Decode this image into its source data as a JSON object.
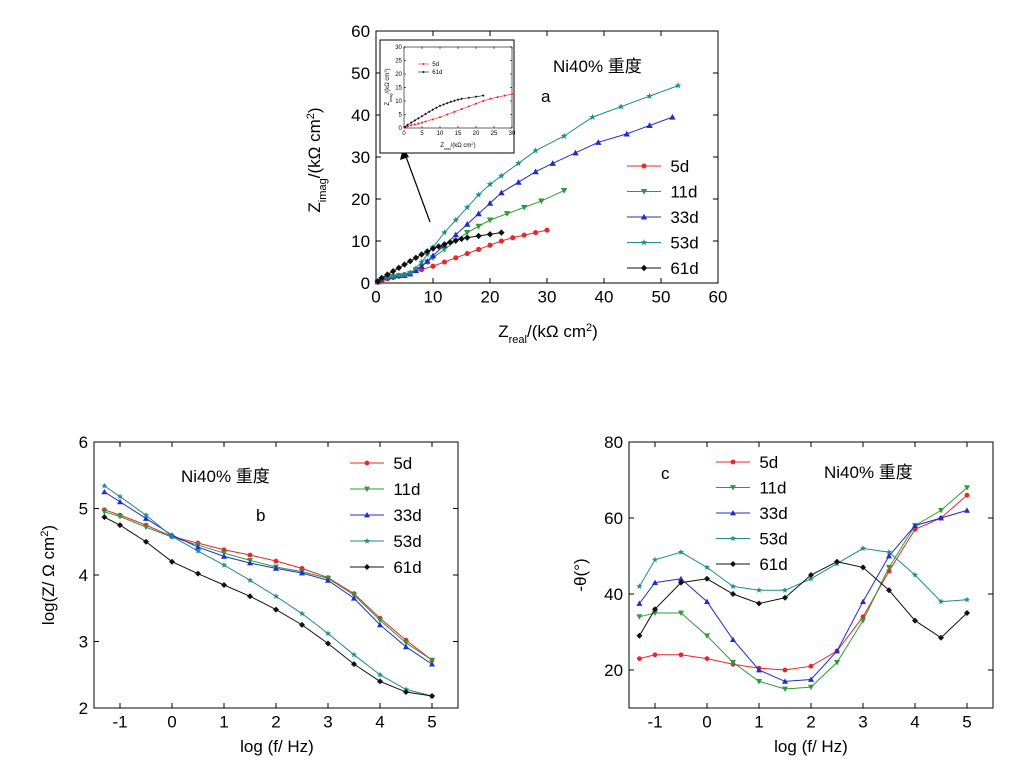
{
  "chart_data": [
    {
      "id": "a",
      "type": "scatter",
      "panel_label": "a",
      "annotation": "Ni40% 重度",
      "xlabel": "Z_real/(kΩ cm^2)",
      "ylabel": "Z_imag/(kΩ cm^2)",
      "xlim": [
        0,
        60
      ],
      "ylim": [
        0,
        60
      ],
      "xticks": [
        0,
        10,
        20,
        30,
        40,
        50,
        60
      ],
      "yticks": [
        0,
        10,
        20,
        30,
        40,
        50,
        60
      ],
      "legend_position": "right",
      "series": [
        {
          "name": "5d",
          "color": "#e8262c",
          "marker": "circle",
          "x": [
            0.3,
            1,
            2,
            3,
            4,
            5,
            6,
            8,
            10,
            12,
            14,
            16,
            18,
            20,
            22,
            24,
            26,
            28,
            30
          ],
          "y": [
            0.2,
            0.6,
            1.0,
            1.3,
            1.6,
            2.0,
            2.4,
            3.2,
            4.0,
            5.0,
            6.0,
            7.0,
            8.0,
            9.0,
            10.0,
            10.8,
            11.4,
            12.0,
            12.6
          ]
        },
        {
          "name": "11d",
          "color": "#2e9a3a",
          "marker": "triangle-down",
          "x": [
            0.3,
            1,
            2,
            3,
            4,
            5,
            6,
            7,
            8,
            9,
            10,
            12,
            14,
            16,
            18,
            20,
            23,
            26,
            29,
            33
          ],
          "y": [
            0.3,
            0.8,
            1.2,
            1.5,
            1.7,
            1.8,
            2.2,
            3.0,
            4.0,
            5.0,
            6.0,
            8.0,
            10.0,
            12.0,
            13.5,
            15.0,
            16.5,
            18.0,
            19.5,
            22.0
          ]
        },
        {
          "name": "33d",
          "color": "#1f2dcc",
          "marker": "triangle-up",
          "x": [
            0.3,
            1,
            2,
            3,
            4,
            5,
            6,
            7,
            8,
            9,
            10,
            12,
            14,
            16,
            18,
            20,
            22,
            25,
            28,
            31,
            35,
            39,
            44,
            48,
            52
          ],
          "y": [
            0.3,
            0.9,
            1.3,
            1.6,
            1.8,
            1.8,
            2.2,
            3.0,
            4.0,
            5.2,
            6.5,
            9.0,
            11.5,
            14.0,
            16.5,
            19.0,
            21.5,
            24.0,
            26.5,
            28.5,
            31.0,
            33.5,
            35.5,
            37.5,
            39.5
          ]
        },
        {
          "name": "53d",
          "color": "#1e8c8c",
          "marker": "star",
          "x": [
            0.3,
            1,
            2,
            3,
            4,
            5,
            6,
            7,
            8,
            9,
            10,
            12,
            14,
            16,
            18,
            20,
            22,
            25,
            28,
            33,
            38,
            43,
            48,
            53
          ],
          "y": [
            0.3,
            0.9,
            1.3,
            1.6,
            1.8,
            1.9,
            2.4,
            3.5,
            5.0,
            6.8,
            8.5,
            12.0,
            15.0,
            18.0,
            21.0,
            23.5,
            25.5,
            28.5,
            31.5,
            35.0,
            39.5,
            42.0,
            44.5,
            47.0
          ]
        },
        {
          "name": "61d",
          "color": "#111111",
          "marker": "diamond",
          "x": [
            0.3,
            1,
            2,
            3,
            4,
            5,
            6,
            7,
            8,
            9,
            10,
            11,
            12,
            13,
            14,
            15,
            16,
            18,
            20,
            22
          ],
          "y": [
            0.4,
            1.2,
            2.0,
            2.8,
            3.6,
            4.4,
            5.2,
            6.0,
            6.8,
            7.5,
            8.2,
            8.7,
            9.2,
            9.7,
            10.1,
            10.5,
            10.8,
            11.2,
            11.6,
            12.0
          ]
        }
      ]
    },
    {
      "id": "a-inset",
      "type": "scatter",
      "xlabel": "Z_real/(kΩ cm^2)",
      "ylabel": "Z_imag/(kΩ cm^2)",
      "xlim": [
        0,
        30
      ],
      "ylim": [
        0,
        30
      ],
      "xticks": [
        0,
        5,
        10,
        15,
        20,
        25,
        30
      ],
      "yticks": [
        0,
        5,
        10,
        15,
        20,
        25,
        30
      ],
      "legend_position": "top-left",
      "series": [
        {
          "name": "5d",
          "color": "#e8262c",
          "marker": "circle",
          "x": [
            0.3,
            1,
            2,
            3,
            4,
            5,
            6,
            8,
            10,
            12,
            14,
            16,
            18,
            20,
            22,
            24,
            26,
            28,
            30
          ],
          "y": [
            0.2,
            0.6,
            1.0,
            1.3,
            1.6,
            2.0,
            2.4,
            3.2,
            4.0,
            5.0,
            6.0,
            7.0,
            8.0,
            9.0,
            10.0,
            10.8,
            11.4,
            12.0,
            12.6
          ]
        },
        {
          "name": "61d",
          "color": "#111111",
          "marker": "diamond",
          "x": [
            0.3,
            1,
            2,
            3,
            4,
            5,
            6,
            7,
            8,
            9,
            10,
            11,
            12,
            13,
            14,
            15,
            16,
            18,
            20,
            22
          ],
          "y": [
            0.4,
            1.2,
            2.0,
            2.8,
            3.6,
            4.4,
            5.2,
            6.0,
            6.8,
            7.5,
            8.2,
            8.7,
            9.2,
            9.7,
            10.1,
            10.5,
            10.8,
            11.2,
            11.6,
            12.0
          ]
        }
      ]
    },
    {
      "id": "b",
      "type": "line",
      "panel_label": "b",
      "annotation": "Ni40%  重度",
      "xlabel": "log (f/ Hz)",
      "ylabel": "log(Z/ Ω cm^2)",
      "xlim": [
        -1.5,
        5.5
      ],
      "ylim": [
        2,
        6
      ],
      "xticks": [
        -1,
        0,
        1,
        2,
        3,
        4,
        5
      ],
      "yticks": [
        2,
        3,
        4,
        5,
        6
      ],
      "legend_position": "top-right",
      "series": [
        {
          "name": "5d",
          "color": "#e8262c",
          "marker": "circle",
          "x": [
            -1.3,
            -1,
            -0.5,
            0,
            0.5,
            1,
            1.5,
            2,
            2.5,
            3,
            3.5,
            4,
            4.5,
            5
          ],
          "y": [
            4.98,
            4.9,
            4.75,
            4.58,
            4.48,
            4.38,
            4.3,
            4.21,
            4.1,
            3.96,
            3.72,
            3.35,
            3.02,
            2.72
          ]
        },
        {
          "name": "11d",
          "color": "#2e9a3a",
          "marker": "triangle-down",
          "x": [
            -1.3,
            -1,
            -0.5,
            0,
            0.5,
            1,
            1.5,
            2,
            2.5,
            3,
            3.5,
            4,
            4.5,
            5
          ],
          "y": [
            4.95,
            4.88,
            4.72,
            4.57,
            4.45,
            4.33,
            4.22,
            4.12,
            4.05,
            3.95,
            3.7,
            3.32,
            2.98,
            2.72
          ]
        },
        {
          "name": "33d",
          "color": "#1f2dcc",
          "marker": "triangle-up",
          "x": [
            -1.3,
            -1,
            -0.5,
            0,
            0.5,
            1,
            1.5,
            2,
            2.5,
            3,
            3.5,
            4,
            4.5,
            5
          ],
          "y": [
            5.25,
            5.1,
            4.85,
            4.6,
            4.42,
            4.28,
            4.18,
            4.1,
            4.03,
            3.92,
            3.65,
            3.25,
            2.92,
            2.66
          ]
        },
        {
          "name": "53d",
          "color": "#1e8c8c",
          "marker": "star",
          "x": [
            -1.3,
            -1,
            -0.5,
            0,
            0.5,
            1,
            1.5,
            2,
            2.5,
            3,
            3.5,
            4,
            4.5,
            5
          ],
          "y": [
            5.34,
            5.18,
            4.9,
            4.58,
            4.36,
            4.15,
            3.92,
            3.68,
            3.42,
            3.12,
            2.8,
            2.5,
            2.28,
            2.18
          ]
        },
        {
          "name": "61d",
          "color": "#111111",
          "marker": "diamond",
          "x": [
            -1.3,
            -1,
            -0.5,
            0,
            0.5,
            1,
            1.5,
            2,
            2.5,
            3,
            3.5,
            4,
            4.5,
            5
          ],
          "y": [
            4.87,
            4.75,
            4.5,
            4.2,
            4.02,
            3.85,
            3.68,
            3.48,
            3.25,
            2.97,
            2.66,
            2.4,
            2.24,
            2.18
          ]
        }
      ]
    },
    {
      "id": "c",
      "type": "line",
      "panel_label": "c",
      "annotation": "Ni40%  重度",
      "xlabel": "log (f/ Hz)",
      "ylabel": "-θ(°)",
      "xlim": [
        -1.5,
        5.5
      ],
      "ylim": [
        10,
        80
      ],
      "xticks": [
        -1,
        0,
        1,
        2,
        3,
        4,
        5
      ],
      "yticks": [
        20,
        40,
        60,
        80
      ],
      "legend_position": "top-left",
      "series": [
        {
          "name": "5d",
          "color": "#e8262c",
          "marker": "circle",
          "x": [
            -1.3,
            -1,
            -0.5,
            0,
            0.5,
            1,
            1.5,
            2,
            2.5,
            3,
            3.5,
            4,
            4.5,
            5
          ],
          "y": [
            23,
            24,
            24,
            23,
            21.5,
            20.5,
            20,
            21,
            25,
            34,
            46,
            57,
            60,
            66
          ]
        },
        {
          "name": "11d",
          "color": "#2e9a3a",
          "marker": "triangle-down",
          "x": [
            -1.3,
            -1,
            -0.5,
            0,
            0.5,
            1,
            1.5,
            2,
            2.5,
            3,
            3.5,
            4,
            4.5,
            5
          ],
          "y": [
            34,
            35,
            35,
            29,
            22,
            17,
            15,
            15.5,
            22,
            33,
            47,
            58,
            62,
            68
          ]
        },
        {
          "name": "33d",
          "color": "#1f2dcc",
          "marker": "triangle-up",
          "x": [
            -1.3,
            -1,
            -0.5,
            0,
            0.5,
            1,
            1.5,
            2,
            2.5,
            3,
            3.5,
            4,
            4.5,
            5
          ],
          "y": [
            37.5,
            43,
            44,
            38,
            28,
            20,
            17,
            17.5,
            25,
            38,
            50,
            58,
            60,
            62
          ]
        },
        {
          "name": "53d",
          "color": "#1e8c8c",
          "marker": "star",
          "x": [
            -1.3,
            -1,
            -0.5,
            0,
            0.5,
            1,
            1.5,
            2,
            2.5,
            3,
            3.5,
            4,
            4.5,
            5
          ],
          "y": [
            42,
            49,
            51,
            47,
            42,
            41,
            41,
            44,
            48,
            52,
            51,
            45,
            38,
            38.5
          ]
        },
        {
          "name": "61d",
          "color": "#111111",
          "marker": "diamond",
          "x": [
            -1.3,
            -1,
            -0.5,
            0,
            0.5,
            1,
            1.5,
            2,
            2.5,
            3,
            3.5,
            4,
            4.5,
            5
          ],
          "y": [
            29,
            36,
            43,
            44,
            40,
            37.5,
            39,
            45,
            48.5,
            47,
            41,
            33,
            28.5,
            35
          ]
        }
      ]
    }
  ]
}
